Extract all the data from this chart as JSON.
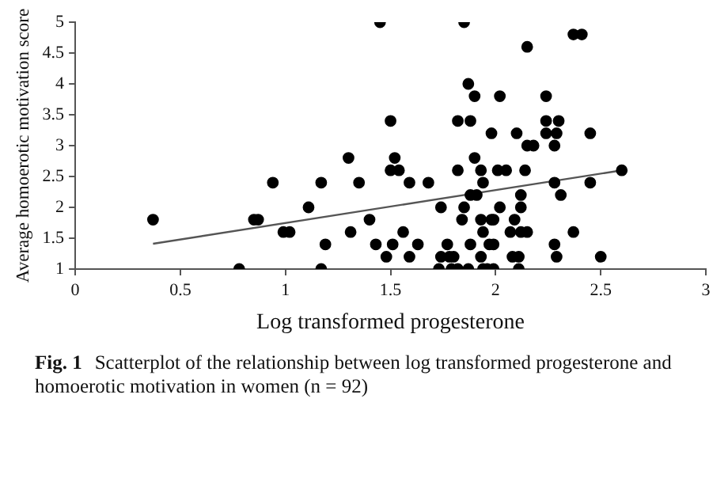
{
  "chart_data": {
    "type": "scatter",
    "xlabel": "Log transformed progesterone",
    "ylabel": "Average homoerotic motivation score",
    "annotations": [
      "Fig. 1",
      "Scatterplot of the relationship between log transformed progesterone and homoerotic motivation in women (n = 92)"
    ],
    "xlim": [
      0,
      3
    ],
    "xticks": [
      0,
      0.5,
      1,
      1.5,
      2,
      2.5,
      3
    ],
    "ylim": [
      1,
      5
    ],
    "yticks": [
      1,
      1.5,
      2,
      2.5,
      3,
      3.5,
      4,
      4.5,
      5
    ],
    "grid": false,
    "legend": false,
    "marker": "circle",
    "series": [
      {
        "color": "#000000",
        "x": [
          0.37,
          0.78,
          0.85,
          0.87,
          0.94,
          0.99,
          1.02,
          1.11,
          1.17,
          1.17,
          1.19,
          1.3,
          1.31,
          1.35,
          1.45,
          1.85,
          2.37,
          2.41,
          2.15,
          1.87,
          1.9,
          2.02,
          2.24,
          1.5,
          1.82,
          1.88,
          2.24,
          2.3,
          1.98,
          2.1,
          2.24,
          2.29,
          2.45,
          2.15,
          2.18,
          2.28,
          1.52,
          1.9,
          1.5,
          1.54,
          1.82,
          1.93,
          2.01,
          2.05,
          2.14,
          2.6,
          1.59,
          1.68,
          1.94,
          2.28,
          2.45,
          1.88,
          1.91,
          2.12,
          2.31,
          1.74,
          1.85,
          2.02,
          2.12,
          1.4,
          1.84,
          1.93,
          1.98,
          1.99,
          2.09,
          1.56,
          1.94,
          2.07,
          2.12,
          2.15,
          2.37,
          1.43,
          1.51,
          1.63,
          1.77,
          1.88,
          1.97,
          1.99,
          2.28,
          1.48,
          1.59,
          1.74,
          1.78,
          1.8,
          1.93,
          2.08,
          2.11,
          2.29,
          2.5,
          1.73,
          1.79,
          1.82,
          1.87,
          1.94,
          1.96,
          1.99,
          2.11
        ],
        "values": [
          1.8,
          1.0,
          1.8,
          1.8,
          2.4,
          1.6,
          1.6,
          2.0,
          2.4,
          1.0,
          1.4,
          2.8,
          1.6,
          2.4,
          5.0,
          5.0,
          4.8,
          4.8,
          4.6,
          4.0,
          3.8,
          3.8,
          3.8,
          3.4,
          3.4,
          3.4,
          3.4,
          3.4,
          3.2,
          3.2,
          3.2,
          3.2,
          3.2,
          3.0,
          3.0,
          3.0,
          2.8,
          2.8,
          2.6,
          2.6,
          2.6,
          2.6,
          2.6,
          2.6,
          2.6,
          2.6,
          2.4,
          2.4,
          2.4,
          2.4,
          2.4,
          2.2,
          2.2,
          2.2,
          2.2,
          2.0,
          2.0,
          2.0,
          2.0,
          1.8,
          1.8,
          1.8,
          1.8,
          1.8,
          1.8,
          1.6,
          1.6,
          1.6,
          1.6,
          1.6,
          1.6,
          1.4,
          1.4,
          1.4,
          1.4,
          1.4,
          1.4,
          1.4,
          1.4,
          1.2,
          1.2,
          1.2,
          1.2,
          1.2,
          1.2,
          1.2,
          1.2,
          1.2,
          1.2,
          1.0,
          1.0,
          1.0,
          1.0,
          1.0,
          1.0,
          1.0,
          1.0
        ]
      },
      {
        "type": "line",
        "color": "#555555",
        "marker": "none",
        "x": [
          0.37,
          2.6
        ],
        "values": [
          1.41,
          2.6
        ]
      }
    ]
  }
}
